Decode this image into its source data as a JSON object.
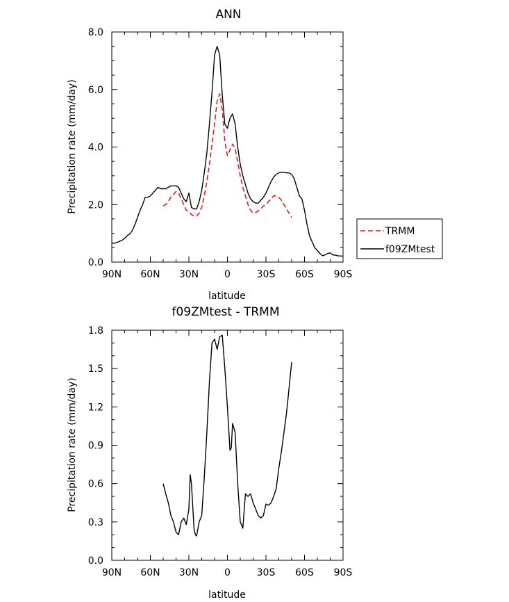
{
  "chart_data": [
    {
      "type": "line",
      "title": "ANN",
      "xlabel": "latitude",
      "ylabel": "Precipitation rate (mm/day)",
      "xlim": [
        90,
        -90
      ],
      "ylim": [
        0,
        8
      ],
      "xticks": [
        {
          "value": 90,
          "label": "90N"
        },
        {
          "value": 60,
          "label": "60N"
        },
        {
          "value": 30,
          "label": "30N"
        },
        {
          "value": 0,
          "label": "0"
        },
        {
          "value": -30,
          "label": "30S"
        },
        {
          "value": -60,
          "label": "60S"
        },
        {
          "value": -90,
          "label": "90S"
        }
      ],
      "yticks": [
        {
          "value": 0,
          "label": "0.0"
        },
        {
          "value": 2,
          "label": "2.0"
        },
        {
          "value": 4,
          "label": "4.0"
        },
        {
          "value": 6,
          "label": "6.0"
        },
        {
          "value": 8,
          "label": "8.0"
        }
      ],
      "legend": "outside-right",
      "grid": false,
      "series": [
        {
          "name": "TRMM",
          "color": "#e31a1c",
          "dash": "dashed",
          "x": [
            50,
            48,
            46,
            44,
            42,
            40,
            38,
            36,
            34,
            32,
            30,
            28,
            26,
            24,
            22,
            20,
            18,
            16,
            14,
            12,
            10,
            8,
            6,
            4,
            2,
            0,
            -2,
            -4,
            -6,
            -8,
            -10,
            -12,
            -14,
            -16,
            -18,
            -20,
            -22,
            -24,
            -26,
            -28,
            -30,
            -32,
            -34,
            -36,
            -38,
            -40,
            -42,
            -44,
            -46,
            -48,
            -50
          ],
          "y": [
            1.95,
            2.0,
            2.1,
            2.25,
            2.35,
            2.45,
            2.4,
            2.2,
            2.0,
            1.8,
            1.75,
            1.65,
            1.6,
            1.6,
            1.7,
            1.9,
            2.3,
            2.8,
            3.4,
            4.1,
            4.8,
            5.6,
            5.85,
            5.3,
            4.2,
            3.7,
            3.9,
            4.1,
            3.95,
            3.5,
            3.0,
            2.6,
            2.3,
            2.0,
            1.8,
            1.7,
            1.72,
            1.78,
            1.85,
            1.95,
            2.0,
            2.1,
            2.2,
            2.3,
            2.3,
            2.25,
            2.15,
            2.0,
            1.85,
            1.7,
            1.55
          ]
        },
        {
          "name": "f09ZMtest",
          "color": "#000000",
          "dash": "solid",
          "x": [
            90,
            88,
            86,
            84,
            82,
            80,
            78,
            76,
            74,
            72,
            70,
            68,
            66,
            64,
            62,
            60,
            58,
            56,
            54,
            52,
            50,
            48,
            46,
            44,
            42,
            40,
            38,
            36,
            34,
            32,
            30,
            28,
            26,
            24,
            22,
            20,
            18,
            16,
            14,
            12,
            10,
            8,
            6,
            4,
            2,
            0,
            -2,
            -4,
            -6,
            -8,
            -10,
            -12,
            -14,
            -16,
            -18,
            -20,
            -22,
            -24,
            -26,
            -28,
            -30,
            -32,
            -34,
            -36,
            -38,
            -40,
            -42,
            -44,
            -46,
            -48,
            -50,
            -52,
            -54,
            -56,
            -58,
            -60,
            -62,
            -64,
            -66,
            -68,
            -70,
            -72,
            -74,
            -76,
            -78,
            -80,
            -82,
            -84,
            -86,
            -88,
            -90
          ],
          "y": [
            0.65,
            0.66,
            0.68,
            0.72,
            0.76,
            0.82,
            0.92,
            0.98,
            1.1,
            1.3,
            1.55,
            1.8,
            2.0,
            2.25,
            2.25,
            2.3,
            2.4,
            2.5,
            2.6,
            2.55,
            2.55,
            2.55,
            2.6,
            2.65,
            2.65,
            2.65,
            2.6,
            2.4,
            2.2,
            2.1,
            2.4,
            1.9,
            1.85,
            1.85,
            2.1,
            2.5,
            3.1,
            3.8,
            4.8,
            5.9,
            7.2,
            7.5,
            7.2,
            5.8,
            4.8,
            4.65,
            5.0,
            5.15,
            4.8,
            4.0,
            3.4,
            3.0,
            2.7,
            2.4,
            2.2,
            2.1,
            2.05,
            2.05,
            2.15,
            2.25,
            2.4,
            2.6,
            2.8,
            2.95,
            3.05,
            3.1,
            3.12,
            3.12,
            3.1,
            3.1,
            3.05,
            2.9,
            2.6,
            2.3,
            2.2,
            1.8,
            1.3,
            0.9,
            0.7,
            0.5,
            0.4,
            0.3,
            0.22,
            0.25,
            0.3,
            0.32,
            0.25,
            0.24,
            0.22,
            0.21,
            0.21
          ]
        }
      ]
    },
    {
      "type": "line",
      "title": "f09ZMtest - TRMM",
      "xlabel": "latitude",
      "ylabel": "Precipitation rate (mm/day)",
      "xlim": [
        90,
        -90
      ],
      "ylim": [
        0,
        1.8
      ],
      "xticks": [
        {
          "value": 90,
          "label": "90N"
        },
        {
          "value": 60,
          "label": "60N"
        },
        {
          "value": 30,
          "label": "30N"
        },
        {
          "value": 0,
          "label": "0"
        },
        {
          "value": -30,
          "label": "30S"
        },
        {
          "value": -60,
          "label": "60S"
        },
        {
          "value": -90,
          "label": "90S"
        }
      ],
      "yticks": [
        {
          "value": 0,
          "label": "0.0"
        },
        {
          "value": 0.3,
          "label": "0.3"
        },
        {
          "value": 0.6,
          "label": "0.6"
        },
        {
          "value": 0.9,
          "label": "0.9"
        },
        {
          "value": 1.2,
          "label": "1.2"
        },
        {
          "value": 1.5,
          "label": "1.5"
        },
        {
          "value": 1.8,
          "label": "1.8"
        }
      ],
      "grid": false,
      "series": [
        {
          "color": "#000000",
          "dash": "solid",
          "x": [
            50,
            48,
            46,
            44,
            42,
            40,
            38,
            36,
            34,
            32,
            30,
            29,
            28,
            26,
            25,
            24,
            22,
            20,
            18,
            16,
            14,
            12,
            10,
            8,
            6,
            4,
            2,
            0,
            -2,
            -3,
            -4,
            -6,
            -8,
            -10,
            -12,
            -14,
            -16,
            -18,
            -20,
            -22,
            -24,
            -26,
            -28,
            -30,
            -32,
            -34,
            -36,
            -38,
            -40,
            -42,
            -44,
            -46,
            -48,
            -50
          ],
          "y": [
            0.6,
            0.52,
            0.45,
            0.35,
            0.3,
            0.22,
            0.2,
            0.3,
            0.33,
            0.28,
            0.4,
            0.67,
            0.6,
            0.25,
            0.2,
            0.19,
            0.3,
            0.35,
            0.65,
            1.0,
            1.4,
            1.7,
            1.73,
            1.65,
            1.75,
            1.76,
            1.5,
            1.2,
            0.86,
            0.88,
            1.07,
            1.0,
            0.6,
            0.3,
            0.25,
            0.52,
            0.5,
            0.52,
            0.45,
            0.4,
            0.35,
            0.33,
            0.35,
            0.44,
            0.43,
            0.45,
            0.5,
            0.56,
            0.72,
            0.85,
            1.0,
            1.15,
            1.35,
            1.55
          ]
        }
      ]
    }
  ]
}
